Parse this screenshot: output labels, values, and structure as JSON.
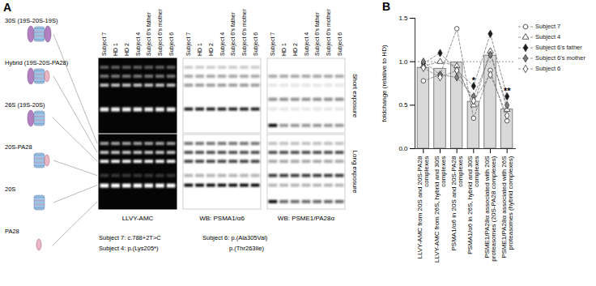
{
  "panel_a": {
    "label": "A",
    "complexes": [
      "30S (19S-20S-19S)",
      "Hybrid (19S-20S-PA28)",
      "26S (19S-20S)",
      "20S-PA28",
      "20S",
      "PA28"
    ],
    "lanes": [
      "Subject 7",
      "HD 1",
      "HD 2",
      "Subject 4",
      "Subject 6's father",
      "Subject 6's mother",
      "Subject 6"
    ],
    "blots": [
      "LLVY-AMC",
      "WB: PSMA1/α6",
      "WB: PSME1/PA28α"
    ],
    "exposures": [
      "Short exposure",
      "Long exposure"
    ],
    "variants": [
      "Subject 7: c.788+2T>C",
      "Subject 4: p.(Lys205*)",
      "Subject 6: p.(Ala305Val)",
      "p.(Thr263Ile)"
    ]
  },
  "chart_data": {
    "type": "bar",
    "panel_label": "B",
    "ylabel": "foldchange (relative to HD)",
    "categories": [
      "LLVY-AMC from 20S and 20S-PA28 complexes",
      "LLVY-AMC from 26S, hybrid and 30S complexes",
      "PSMA1/α6 in 20S and 20S-PA28 complexes",
      "PSMA1/α6 in 26S, hybrid and 30S complexes",
      "PSME1/PA28α associated with 20S proteasomes (20S-PA28 complexes)",
      "PSME1/PA28α associated with 26S proteasomes (hybrid complexes)"
    ],
    "values": [
      0.93,
      0.92,
      0.99,
      0.54,
      1.07,
      0.45
    ],
    "color": "#d9d9d9",
    "ylim": [
      0,
      1.5
    ],
    "yticks": [
      {
        "value": 0,
        "label": "0.0"
      },
      {
        "value": 0.5,
        "label": "0.5"
      },
      {
        "value": 1,
        "label": "1.0"
      },
      {
        "value": 1.5,
        "label": "1.5"
      }
    ],
    "reference_line": 1,
    "legend": "right",
    "series": [
      {
        "name": "Subject 7",
        "type": "scatter",
        "marker": "circle",
        "color": "#ffffff",
        "line_style": "dashed",
        "values": [
          0.78,
          0.85,
          1.38,
          0.35,
          0.9,
          0.32
        ]
      },
      {
        "name": "Subject 4",
        "type": "scatter",
        "marker": "triangle",
        "color": "#ffffff",
        "line_style": "dashed",
        "values": [
          0.95,
          1.0,
          0.95,
          0.5,
          1.12,
          0.45
        ]
      },
      {
        "name": "Subject 6's father",
        "type": "scatter",
        "marker": "diamond",
        "color": "#1a1a1a",
        "line_style": "dashed",
        "values": [
          0.98,
          1.1,
          0.9,
          0.72,
          1.32,
          0.6
        ]
      },
      {
        "name": "Subject 6's mother",
        "type": "scatter",
        "marker": "diamond",
        "color": "#808080",
        "line_style": "dashed",
        "values": [
          1.0,
          0.85,
          0.82,
          0.6,
          1.08,
          0.5
        ]
      },
      {
        "name": "Subject 6",
        "type": "scatter",
        "marker": "diamond",
        "color": "#ffffff",
        "line_style": "dashed",
        "values": [
          0.93,
          0.82,
          0.9,
          0.55,
          0.85,
          0.38
        ]
      }
    ],
    "annotations": [
      {
        "text": "*",
        "category": "PSMA1/α6 in 26S, hybrid and 30S complexes"
      },
      {
        "text": "**",
        "category": "PSME1/PA28α associated with 26S proteasomes (hybrid complexes)"
      }
    ]
  }
}
